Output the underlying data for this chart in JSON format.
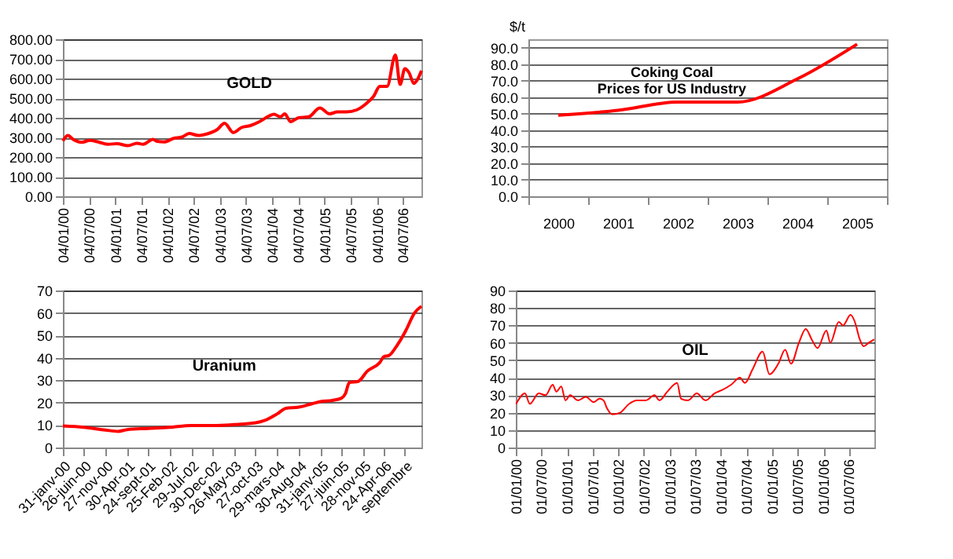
{
  "chart_data": [
    {
      "type": "line",
      "title": "GOLD",
      "grid": "y",
      "x": [
        "2000-01-04",
        "2000-02-07",
        "2000-03-15",
        "2000-05-15",
        "2000-07-10",
        "2000-09-15",
        "2000-11-15",
        "2001-01-15",
        "2001-04-02",
        "2001-06-04",
        "2001-07-16",
        "2001-09-24",
        "2001-10-22",
        "2001-12-10",
        "2002-02-15",
        "2002-04-15",
        "2002-06-03",
        "2002-08-05",
        "2002-10-07",
        "2002-12-16",
        "2003-02-05",
        "2003-04-07",
        "2003-06-02",
        "2003-08-04",
        "2003-10-06",
        "2003-12-15",
        "2004-01-15",
        "2004-03-01",
        "2004-04-01",
        "2004-05-10",
        "2004-07-05",
        "2004-09-15",
        "2004-12-01",
        "2005-02-07",
        "2005-04-04",
        "2005-06-06",
        "2005-08-15",
        "2005-10-17",
        "2005-12-12",
        "2006-01-23",
        "2006-03-15",
        "2006-05-12",
        "2006-06-14",
        "2006-07-17",
        "2006-08-15",
        "2006-09-18",
        "2006-10-09",
        "2006-11-10"
      ],
      "series": [
        {
          "color": "#ff0000",
          "values": [
            282,
            310,
            290,
            275,
            285,
            275,
            265,
            268,
            258,
            270,
            265,
            290,
            280,
            277,
            295,
            302,
            320,
            310,
            318,
            340,
            372,
            325,
            350,
            360,
            380,
            410,
            418,
            405,
            420,
            380,
            400,
            405,
            450,
            420,
            430,
            430,
            440,
            470,
            510,
            560,
            560,
            720,
            570,
            650,
            630,
            575,
            590,
            640
          ]
        }
      ],
      "xlim": [
        "2000-01-04",
        "2006-11-10"
      ],
      "xticks": [
        {
          "value": "2000-01-04",
          "label": "04/01/00"
        },
        {
          "value": "2000-07-04",
          "label": "04/07/00"
        },
        {
          "value": "2001-01-04",
          "label": "04/01/01"
        },
        {
          "value": "2001-07-04",
          "label": "04/07/01"
        },
        {
          "value": "2002-01-04",
          "label": "04/01/02"
        },
        {
          "value": "2002-07-04",
          "label": "04/07/02"
        },
        {
          "value": "2003-01-04",
          "label": "04/01/03"
        },
        {
          "value": "2003-07-04",
          "label": "04/07/03"
        },
        {
          "value": "2004-01-04",
          "label": "04/01/04"
        },
        {
          "value": "2004-07-04",
          "label": "04/07/04"
        },
        {
          "value": "2005-01-04",
          "label": "04/01/05"
        },
        {
          "value": "2005-07-04",
          "label": "04/07/05"
        },
        {
          "value": "2006-01-04",
          "label": "04/01/06"
        },
        {
          "value": "2006-07-04",
          "label": "04/07/06"
        }
      ],
      "ylim": [
        0,
        800
      ],
      "yticks": [
        {
          "value": 0,
          "label": "0.00"
        },
        {
          "value": 100,
          "label": "100.00"
        },
        {
          "value": 200,
          "label": "200.00"
        },
        {
          "value": 300,
          "label": "300.00"
        },
        {
          "value": 400,
          "label": "400.00"
        },
        {
          "value": 500,
          "label": "500.00"
        },
        {
          "value": 600,
          "label": "600.00"
        },
        {
          "value": 700,
          "label": "700.00"
        },
        {
          "value": 800,
          "label": "800.00"
        }
      ]
    },
    {
      "type": "line",
      "title": "Coking Coal\nPrices for US Industry",
      "ylabel": "$/t",
      "grid": "y",
      "categories": [
        "2000",
        "2001",
        "2002",
        "2003",
        "2004",
        "2005"
      ],
      "series": [
        {
          "color": "#ff0000",
          "values": [
            49,
            52,
            57,
            57,
            71,
            92
          ]
        }
      ],
      "ylim": [
        0,
        95
      ],
      "yticks": [
        {
          "value": 0,
          "label": "0.0"
        },
        {
          "value": 10,
          "label": "10.0"
        },
        {
          "value": 20,
          "label": "20.0"
        },
        {
          "value": 30,
          "label": "30.0"
        },
        {
          "value": 40,
          "label": "40.0"
        },
        {
          "value": 50,
          "label": "50.0"
        },
        {
          "value": 60,
          "label": "60.0"
        },
        {
          "value": 70,
          "label": "70.0"
        },
        {
          "value": 80,
          "label": "80.0"
        },
        {
          "value": 90,
          "label": "90.0"
        }
      ]
    },
    {
      "type": "line",
      "title": "Uranium",
      "grid": "y",
      "x": [
        "2000-01-31",
        "2000-06-26",
        "2000-11-27",
        "2001-02-26",
        "2001-04-30",
        "2001-09-24",
        "2002-02-25",
        "2002-07-29",
        "2002-12-30",
        "2003-05-26",
        "2003-10-27",
        "2003-12-29",
        "2004-03-29",
        "2004-05-31",
        "2004-08-30",
        "2004-11-29",
        "2005-01-31",
        "2005-04-25",
        "2005-06-27",
        "2005-07-25",
        "2005-08-22",
        "2005-10-24",
        "2005-12-26",
        "2006-03-27",
        "2006-04-24",
        "2006-05-29",
        "2006-07-31",
        "2006-09-25",
        "2006-11-27",
        "2007-01-15"
      ],
      "series": [
        {
          "color": "#ff0000",
          "values": [
            9.6,
            9,
            7.8,
            7.2,
            8,
            8.5,
            9,
            9.8,
            9.8,
            10.2,
            11,
            12,
            15,
            17.5,
            18,
            19.5,
            20.5,
            21,
            22,
            24,
            29,
            29.5,
            34,
            38,
            40.5,
            41,
            46,
            52,
            60,
            63
          ]
        }
      ],
      "xlim": [
        "2000-01-31",
        "2007-01-15"
      ],
      "xticks": [
        {
          "value": "2000-01-31",
          "label": "31-janv-00"
        },
        {
          "value": "2000-06-26",
          "label": "26-juin-00"
        },
        {
          "value": "2000-11-27",
          "label": "27-nov-00"
        },
        {
          "value": "2001-04-30",
          "label": "30-Apr-01"
        },
        {
          "value": "2001-09-24",
          "label": "24-sept-01"
        },
        {
          "value": "2002-02-25",
          "label": "25-Feb-02"
        },
        {
          "value": "2002-07-29",
          "label": "29-Jul-02"
        },
        {
          "value": "2002-12-30",
          "label": "30-Dec-02"
        },
        {
          "value": "2003-05-26",
          "label": "26-May-03"
        },
        {
          "value": "2003-10-27",
          "label": "27-oct-03"
        },
        {
          "value": "2004-03-29",
          "label": "29-mars-04"
        },
        {
          "value": "2004-08-30",
          "label": "30-Aug-04"
        },
        {
          "value": "2005-01-31",
          "label": "31-janv-05"
        },
        {
          "value": "2005-06-27",
          "label": "27-juin-05"
        },
        {
          "value": "2005-11-28",
          "label": "28-nov-05"
        },
        {
          "value": "2006-04-24",
          "label": "24-Apr-06"
        },
        {
          "value": "2006-09-18",
          "label": "septembre"
        }
      ],
      "ylim": [
        0,
        70
      ],
      "yticks": [
        0,
        10,
        20,
        30,
        40,
        50,
        60,
        70
      ]
    },
    {
      "type": "line",
      "title": "OIL",
      "grid": "y",
      "x": [
        "2000-01-03",
        "2000-03-06",
        "2000-04-10",
        "2000-06-12",
        "2000-08-01",
        "2000-09-20",
        "2000-10-16",
        "2000-11-20",
        "2000-12-20",
        "2001-01-22",
        "2001-03-19",
        "2001-05-14",
        "2001-07-09",
        "2001-08-20",
        "2001-09-17",
        "2001-10-15",
        "2001-11-19",
        "2002-01-14",
        "2002-03-18",
        "2002-05-13",
        "2002-07-15",
        "2002-09-16",
        "2002-10-21",
        "2002-12-16",
        "2003-02-24",
        "2003-03-24",
        "2003-05-12",
        "2003-07-14",
        "2003-09-15",
        "2003-11-17",
        "2004-01-12",
        "2004-03-15",
        "2004-05-17",
        "2004-06-21",
        "2004-08-16",
        "2004-10-25",
        "2004-12-13",
        "2005-02-14",
        "2005-04-04",
        "2005-05-16",
        "2005-07-11",
        "2005-08-29",
        "2005-10-10",
        "2005-11-21",
        "2006-01-23",
        "2006-02-20",
        "2006-04-21",
        "2006-05-22",
        "2006-07-14",
        "2006-08-14",
        "2006-09-18",
        "2006-10-16",
        "2006-11-20",
        "2006-12-29"
      ],
      "series": [
        {
          "color": "#ff0000",
          "values": [
            25,
            31,
            25,
            31,
            30,
            36,
            32,
            35,
            27,
            30,
            27,
            29,
            26,
            28,
            27,
            22,
            19,
            20,
            25,
            27,
            27,
            30,
            27,
            32,
            37,
            28,
            27,
            31,
            27,
            31,
            33,
            36,
            40,
            37,
            45,
            55,
            42,
            48,
            56,
            48,
            60,
            68,
            62,
            57,
            67,
            60,
            72,
            70,
            76,
            72,
            62,
            58,
            60,
            62
          ]
        }
      ],
      "xlim": [
        "2000-01-01",
        "2006-12-31"
      ],
      "xticks": [
        {
          "value": "2000-01-01",
          "label": "01/01/00"
        },
        {
          "value": "2000-07-01",
          "label": "01/07/00"
        },
        {
          "value": "2001-01-01",
          "label": "01/01/01"
        },
        {
          "value": "2001-07-01",
          "label": "01/07/01"
        },
        {
          "value": "2002-01-01",
          "label": "01/01/02"
        },
        {
          "value": "2002-07-01",
          "label": "01/07/02"
        },
        {
          "value": "2003-01-01",
          "label": "01/01/03"
        },
        {
          "value": "2003-07-01",
          "label": "01/07/03"
        },
        {
          "value": "2004-01-01",
          "label": "01/01/04"
        },
        {
          "value": "2004-07-01",
          "label": "01/07/04"
        },
        {
          "value": "2005-01-01",
          "label": "01/01/05"
        },
        {
          "value": "2005-07-01",
          "label": "01/07/05"
        },
        {
          "value": "2006-01-01",
          "label": "01/01/06"
        },
        {
          "value": "2006-07-01",
          "label": "01/07/06"
        }
      ],
      "ylim": [
        0,
        90
      ],
      "yticks": [
        0,
        10,
        20,
        30,
        40,
        50,
        60,
        70,
        80,
        90
      ]
    }
  ]
}
